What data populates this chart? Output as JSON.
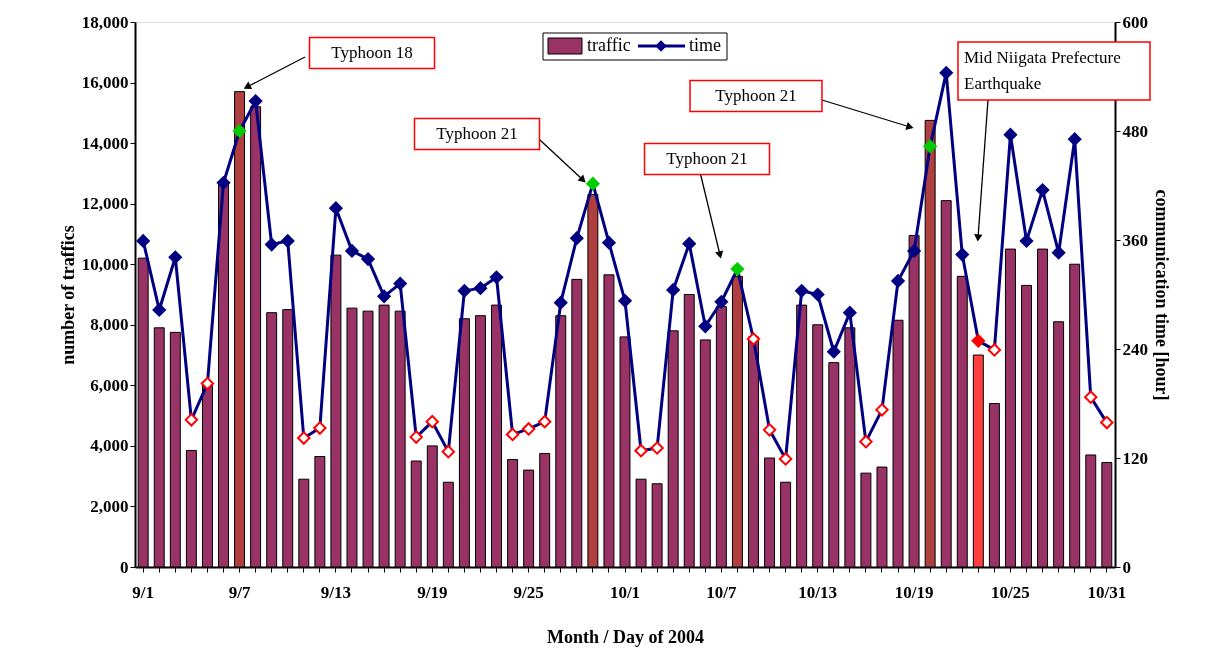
{
  "chart_data": {
    "type": "bar",
    "xlabel": "Month / Day of 2004",
    "ylabel": "number of traffics",
    "y2label": "communication time [hour]",
    "categories": [
      "9/1",
      null,
      null,
      null,
      null,
      null,
      "9/7",
      null,
      null,
      null,
      null,
      null,
      "9/13",
      null,
      null,
      null,
      null,
      null,
      "9/19",
      null,
      null,
      null,
      null,
      null,
      "9/25",
      null,
      null,
      null,
      null,
      null,
      "10/1",
      null,
      null,
      null,
      null,
      null,
      "10/7",
      null,
      null,
      null,
      null,
      null,
      "10/13",
      null,
      null,
      null,
      null,
      null,
      "10/19",
      null,
      null,
      null,
      null,
      null,
      "10/25",
      null,
      null,
      null,
      null,
      null,
      "10/31"
    ],
    "series": [
      {
        "name": "traffic",
        "color": "#993366",
        "colors": [
          "#993366",
          "#993366",
          "#993366",
          "#993366",
          "#993366",
          "#993366",
          "#b04040",
          "#993366",
          "#993366",
          "#993366",
          "#993366",
          "#993366",
          "#993366",
          "#993366",
          "#993366",
          "#993366",
          "#993366",
          "#993366",
          "#993366",
          "#993366",
          "#993366",
          "#993366",
          "#993366",
          "#993366",
          "#993366",
          "#993366",
          "#993366",
          "#993366",
          "#b04040",
          "#993366",
          "#993366",
          "#993366",
          "#993366",
          "#993366",
          "#993366",
          "#993366",
          "#993366",
          "#b04040",
          "#993366",
          "#993366",
          "#993366",
          "#993366",
          "#993366",
          "#993366",
          "#993366",
          "#993366",
          "#993366",
          "#993366",
          "#993366",
          "#b04040",
          "#993366",
          "#993366",
          "#ff4040",
          "#993366",
          "#993366",
          "#993366",
          "#993366",
          "#993366",
          "#993366",
          "#993366",
          "#993366"
        ],
        "values": [
          10200,
          7900,
          7750,
          3850,
          6000,
          12700,
          15700,
          15200,
          8400,
          8500,
          2900,
          3650,
          10300,
          8550,
          8450,
          8650,
          8450,
          3500,
          4000,
          2800,
          8200,
          8300,
          8650,
          3550,
          3200,
          3750,
          8300,
          9500,
          12300,
          9650,
          7600,
          2900,
          2750,
          7800,
          9000,
          7500,
          8600,
          9600,
          7600,
          3600,
          2800,
          8650,
          8000,
          6750,
          7900,
          3100,
          3300,
          8150,
          10950,
          14750,
          12100,
          9600,
          7000,
          5400,
          10500,
          9300,
          10500,
          8100,
          10000,
          3700,
          3450
        ]
      },
      {
        "name": "time",
        "type": "line",
        "axis": "y2",
        "color": "#000080",
        "colors": [
          "#000080",
          "#000080",
          "#000080",
          "#ffffff",
          "#ffffff",
          "#000080",
          "#00cc00",
          "#000080",
          "#000080",
          "#000080",
          "#ffffff",
          "#ffffff",
          "#000080",
          "#000080",
          "#000080",
          "#000080",
          "#000080",
          "#ffffff",
          "#ffffff",
          "#ffffff",
          "#000080",
          "#000080",
          "#000080",
          "#ffffff",
          "#ffffff",
          "#ffffff",
          "#000080",
          "#000080",
          "#00cc00",
          "#000080",
          "#000080",
          "#ffffff",
          "#ffffff",
          "#000080",
          "#000080",
          "#000080",
          "#000080",
          "#00cc00",
          "#ffffff",
          "#ffffff",
          "#ffffff",
          "#000080",
          "#000080",
          "#000080",
          "#000080",
          "#ffffff",
          "#ffffff",
          "#000080",
          "#000080",
          "#00cc00",
          "#000080",
          "#000080",
          "#ff0000",
          "#ffffff",
          "#000080",
          "#000080",
          "#000080",
          "#000080",
          "#000080",
          "#ffffff",
          "#ffffff"
        ],
        "values": [
          359,
          283,
          341,
          162,
          202,
          423,
          480,
          513,
          355,
          359,
          142,
          153,
          395,
          348,
          339,
          298,
          312,
          143,
          160,
          127,
          304,
          307,
          319,
          146,
          152,
          160,
          291,
          362,
          422,
          357,
          293,
          128,
          131,
          305,
          356,
          265,
          292,
          328,
          251,
          151,
          119,
          304,
          300,
          237,
          280,
          138,
          173,
          315,
          348,
          463,
          544,
          344,
          249,
          239,
          476,
          359,
          415,
          346,
          471,
          187,
          159
        ]
      }
    ],
    "ylim": [
      0,
      18000
    ],
    "yticks": [
      0,
      {
        "value": 2000,
        "label": "2,000"
      },
      {
        "value": 4000,
        "label": "4,000"
      },
      {
        "value": 6000,
        "label": "6,000"
      },
      {
        "value": 8000,
        "label": "8,000"
      },
      {
        "value": 10000,
        "label": "10,000"
      },
      {
        "value": 12000,
        "label": "12,000"
      },
      {
        "value": 14000,
        "label": "14,000"
      },
      {
        "value": 16000,
        "label": "16,000"
      },
      {
        "value": 18000,
        "label": "18,000"
      }
    ],
    "y2lim": [
      0,
      600
    ],
    "y2ticks": [
      0,
      120,
      240,
      360,
      480,
      600
    ],
    "marker": "diamond",
    "legend": "top",
    "grid": false,
    "annotations": [
      "Typhoon 18",
      "Typhoon 21",
      "Typhoon 21",
      "Typhoon 21",
      "Mid Niigata Prefecture Earthquake"
    ]
  }
}
